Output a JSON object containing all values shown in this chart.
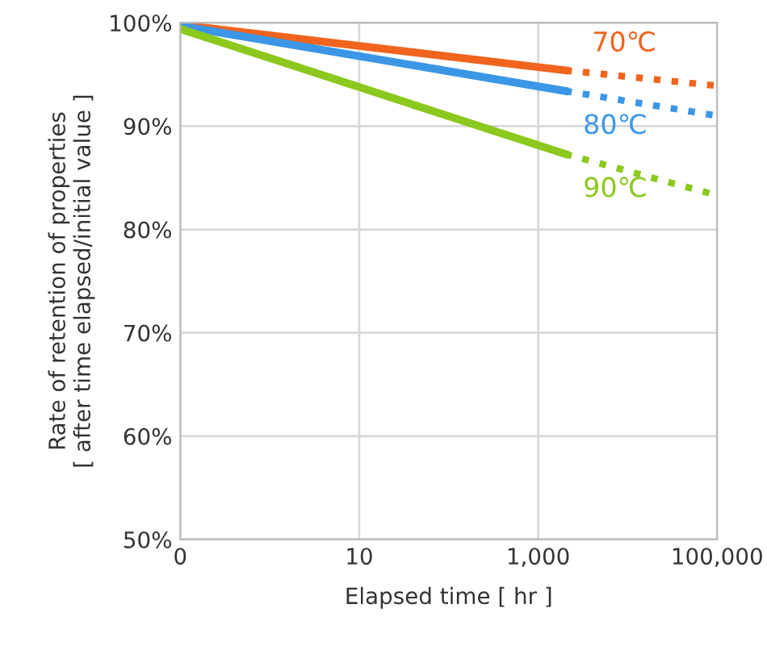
{
  "chart_data": {
    "type": "line",
    "xlabel": "Elapsed time [ hr ]",
    "ylabel": "Rate of retention of properties\n[ after time elapsed/initial value ]",
    "log": "x",
    "xlim": [
      0.1,
      100000
    ],
    "xticks": [
      {
        "value": 0.1,
        "label": "0"
      },
      10,
      {
        "value": 1000,
        "label": "1,000"
      },
      {
        "value": 100000,
        "label": "100,000"
      }
    ],
    "ylim": [
      50,
      100
    ],
    "yticks": [
      {
        "value": 50,
        "label": "50%"
      },
      {
        "value": 60,
        "label": "60%"
      },
      {
        "value": 70,
        "label": "70%"
      },
      {
        "value": 80,
        "label": "80%"
      },
      {
        "value": 90,
        "label": "90%"
      },
      {
        "value": 100,
        "label": "100%"
      }
    ],
    "grid": true,
    "legend": false,
    "marker": "none",
    "series": [
      {
        "name": "70℃",
        "color": "#f0641e",
        "x": [
          0.1,
          2000
        ],
        "values": [
          99.8,
          95.4
        ],
        "line_style": "solid"
      },
      {
        "color": "#f0641e",
        "x": [
          2000,
          100000
        ],
        "values": [
          95.4,
          93.9
        ],
        "line_style": "dotted"
      },
      {
        "name": "80℃",
        "color": "#3c96e6",
        "x": [
          0.1,
          2000
        ],
        "values": [
          99.7,
          93.4
        ],
        "line_style": "solid"
      },
      {
        "color": "#3c96e6",
        "x": [
          2000,
          100000
        ],
        "values": [
          93.4,
          91.0
        ],
        "line_style": "dotted"
      },
      {
        "name": "90℃",
        "color": "#8cc81e",
        "x": [
          0.1,
          2000
        ],
        "values": [
          99.4,
          87.3
        ],
        "line_style": "solid"
      },
      {
        "color": "#8cc81e",
        "x": [
          2000,
          100000
        ],
        "values": [
          87.3,
          83.3
        ],
        "line_style": "dotted"
      }
    ]
  }
}
